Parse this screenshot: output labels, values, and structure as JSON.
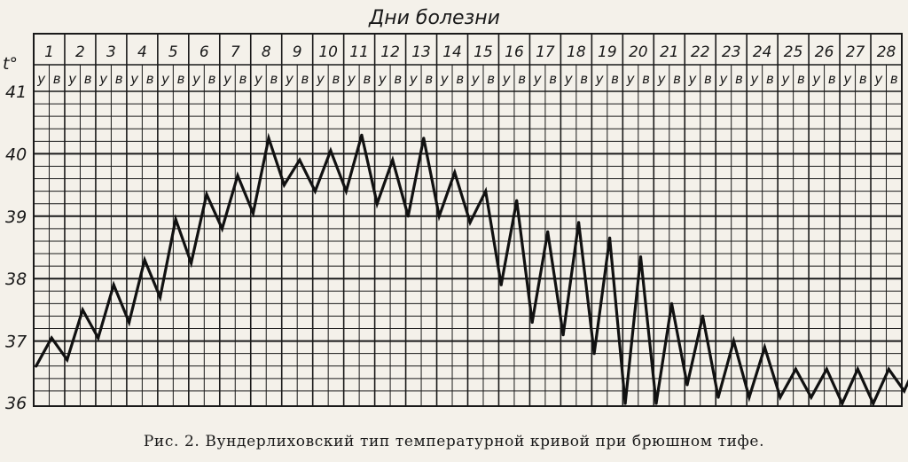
{
  "chart_data": {
    "type": "line",
    "title": "Дни болезни",
    "ylabel": "t°",
    "ylim": [
      36,
      41
    ],
    "y_ticks": [
      "36",
      "37",
      "38",
      "39",
      "40",
      "41"
    ],
    "days": [
      "1",
      "2",
      "3",
      "4",
      "5",
      "6",
      "7",
      "8",
      "9",
      "10",
      "11",
      "12",
      "13",
      "14",
      "15",
      "16",
      "17",
      "18",
      "19",
      "20",
      "21",
      "22",
      "23",
      "24",
      "25",
      "26",
      "27",
      "28"
    ],
    "half_labels": [
      "у",
      "в"
    ],
    "grid": true,
    "series": [
      {
        "values": [
          36.6,
          37.05,
          36.7,
          37.5,
          37.05,
          37.9,
          37.3,
          38.3,
          37.7,
          38.95,
          38.25,
          39.35,
          38.8,
          39.65,
          39.05,
          40.25,
          39.5,
          39.9,
          39.4,
          40.05,
          39.4,
          40.3,
          39.2,
          39.9,
          39.0,
          40.25,
          39.0,
          39.7,
          38.9,
          39.4,
          37.9,
          39.25,
          37.3,
          38.75,
          37.1,
          38.9,
          36.8,
          38.65,
          36.0,
          38.35,
          36.0,
          37.6,
          36.3,
          37.4,
          36.1,
          37.0,
          36.1,
          36.9,
          36.1,
          36.55,
          36.1,
          36.55,
          36.0,
          36.55,
          36.0,
          36.55,
          36.2,
          36.75
        ]
      }
    ]
  },
  "caption": "Рис. 2. Вундерлиховский тип температурной кривой при брюшном тифе."
}
